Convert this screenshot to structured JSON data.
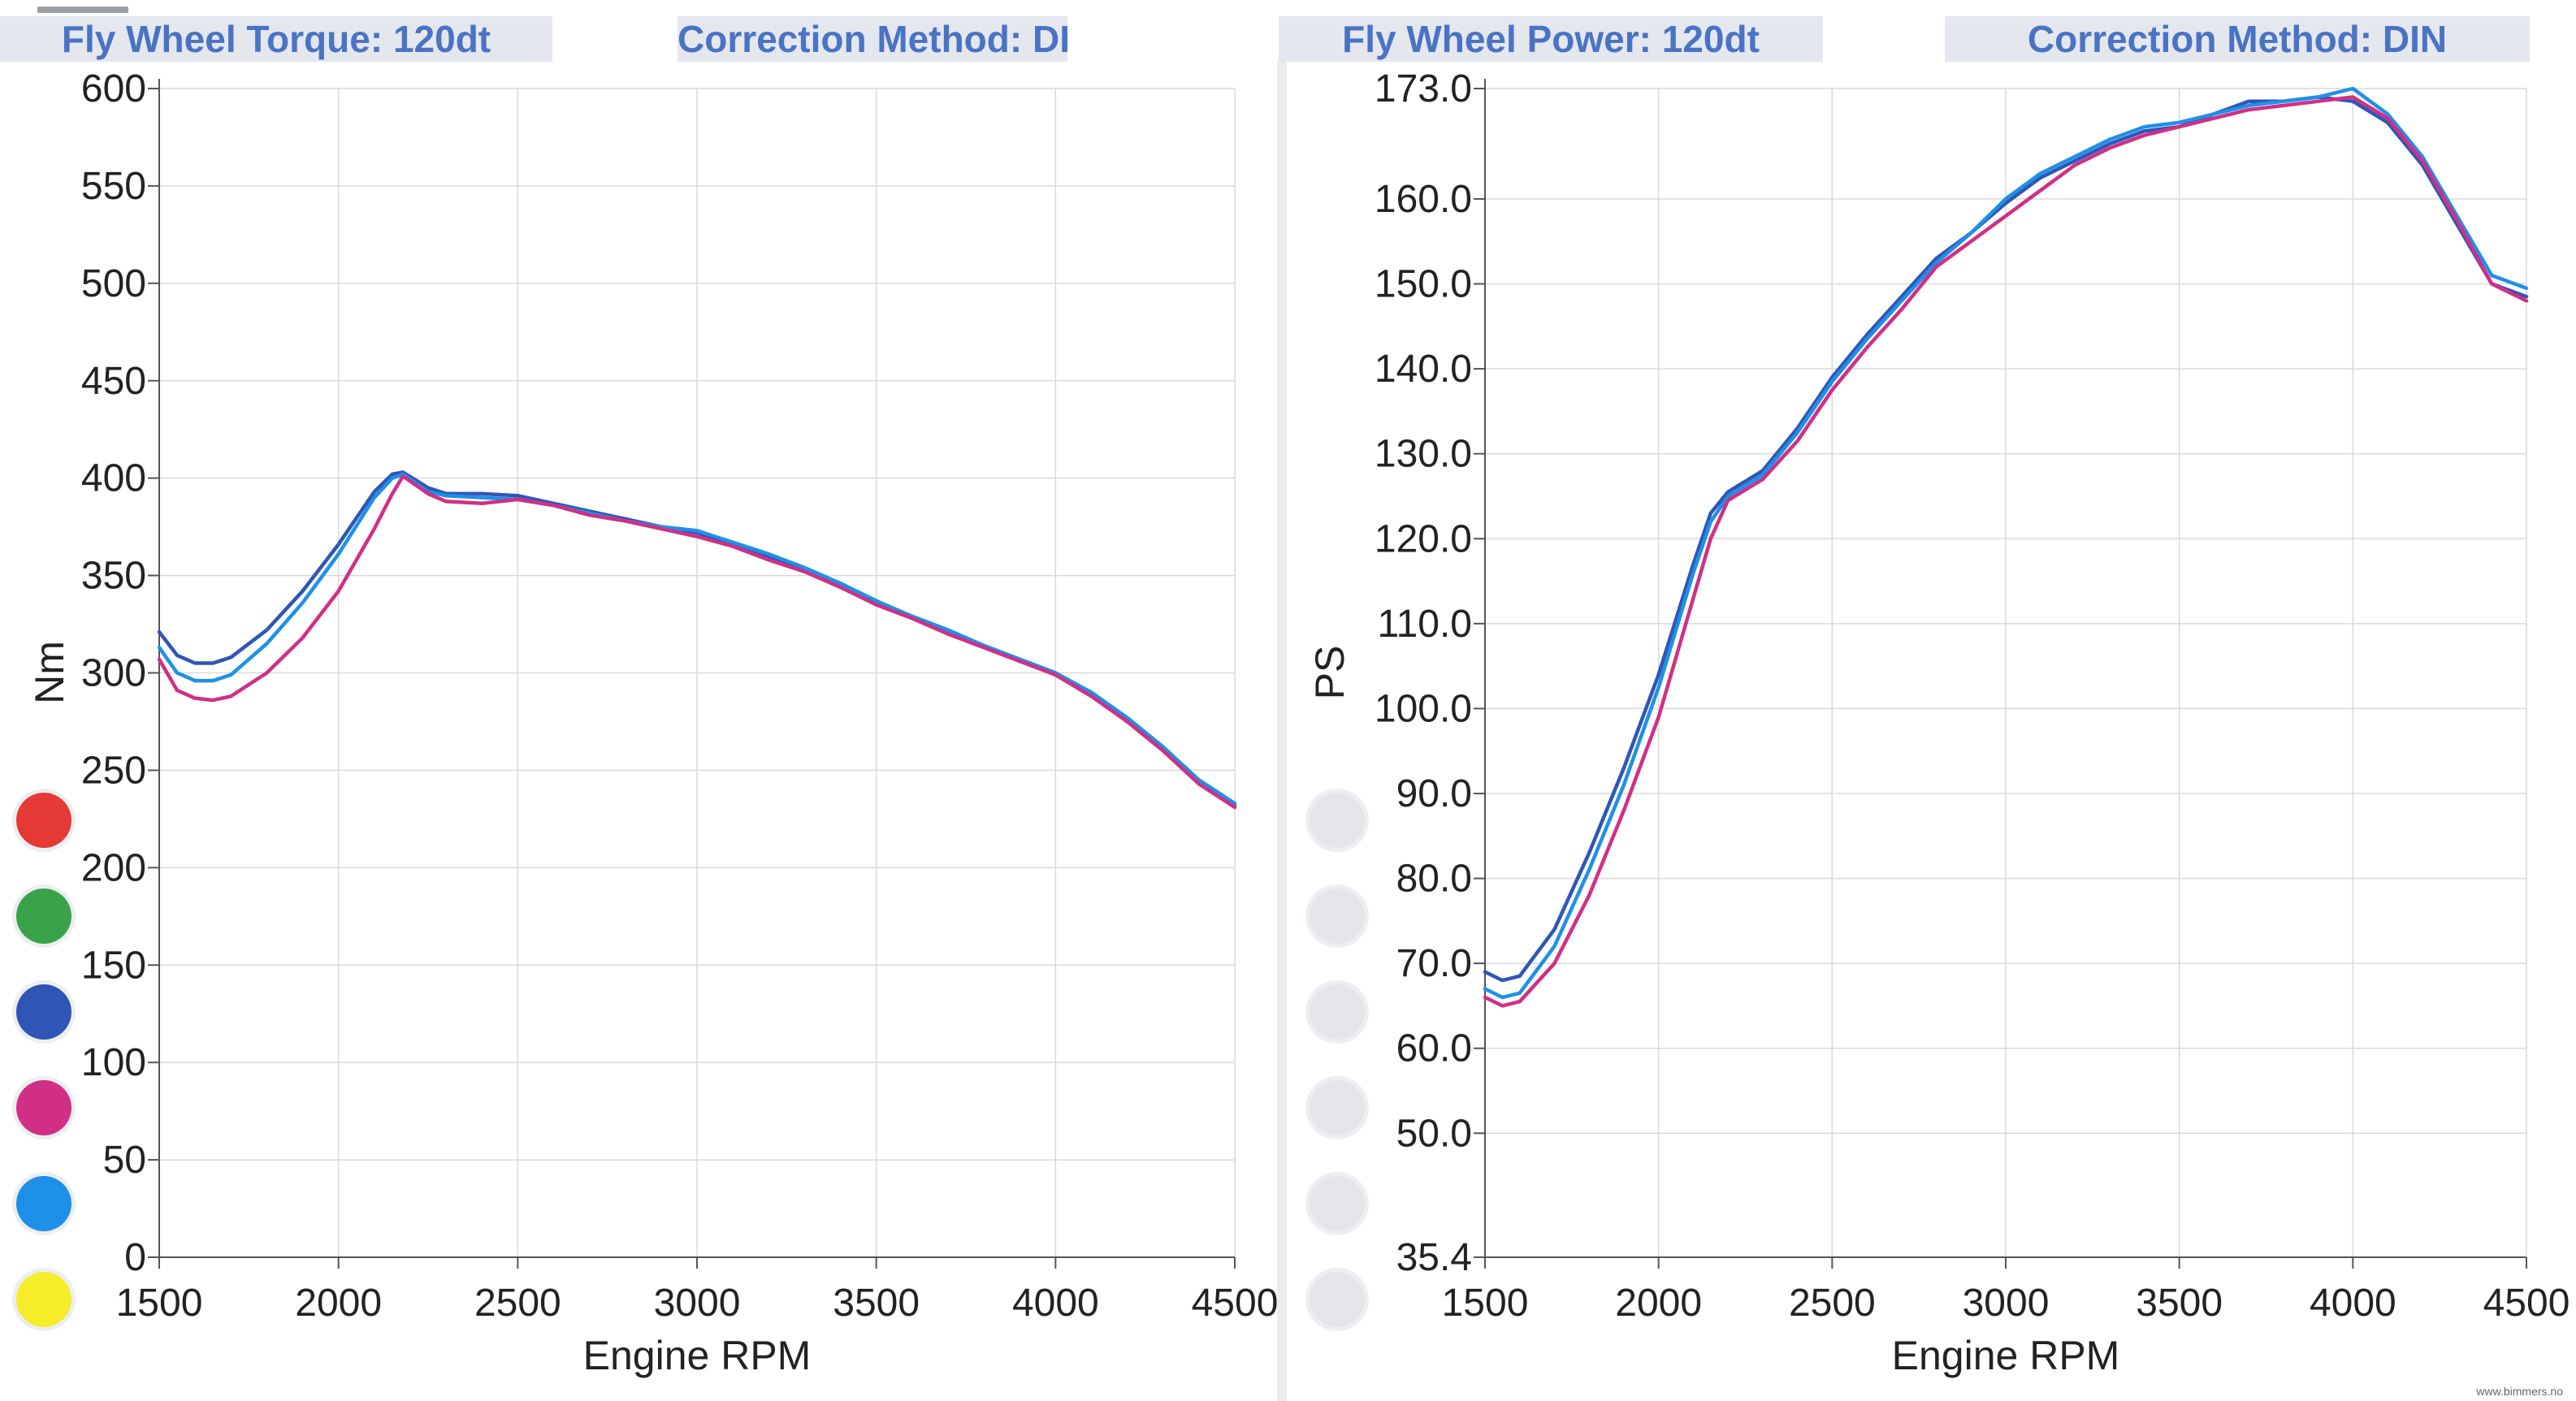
{
  "headers": [
    {
      "label": "Fly Wheel Torque: 120dt"
    },
    {
      "label": "Correction Method: DIN"
    },
    {
      "label": "Fly Wheel Power: 120dt"
    },
    {
      "label": "Correction Method: DIN"
    }
  ],
  "legend_swatches": [
    {
      "color": "#e53935"
    },
    {
      "color": "#3aa34a"
    },
    {
      "color": "#2f56b5"
    },
    {
      "color": "#d12f85"
    },
    {
      "color": "#1e90e8"
    },
    {
      "color": "#f6ec2a"
    }
  ],
  "inactive_swatch_color": "#e4e5e9",
  "watermark": "www.bimmers.no",
  "chart_data": [
    {
      "type": "line",
      "xlabel": "Engine RPM",
      "ylabel": "Nm",
      "xlim": [
        1500,
        4500
      ],
      "ylim": [
        0,
        600
      ],
      "x_ticks": [
        "1500",
        "2000",
        "2500",
        "3000",
        "3500",
        "4000",
        "4500"
      ],
      "y_ticks": [
        "0",
        "50",
        "100",
        "150",
        "200",
        "250",
        "300",
        "350",
        "400",
        "450",
        "500",
        "550",
        "600"
      ],
      "grid": true,
      "x": [
        1500,
        1550,
        1600,
        1650,
        1700,
        1800,
        1900,
        2000,
        2100,
        2150,
        2180,
        2250,
        2300,
        2400,
        2500,
        2600,
        2700,
        2800,
        2900,
        3000,
        3100,
        3200,
        3300,
        3400,
        3500,
        3600,
        3700,
        3800,
        3900,
        4000,
        4100,
        4200,
        4300,
        4400,
        4500
      ],
      "series": [
        {
          "color": "#2f56b5",
          "values": [
            321,
            309,
            305,
            305,
            308,
            322,
            342,
            366,
            393,
            402,
            403,
            395,
            392,
            392,
            391,
            387,
            383,
            379,
            375,
            372,
            366,
            360,
            353,
            345,
            336,
            329,
            322,
            314,
            307,
            300,
            289,
            276,
            261,
            244,
            232
          ]
        },
        {
          "color": "#1e90e8",
          "values": [
            313,
            300,
            296,
            296,
            299,
            315,
            336,
            361,
            390,
            400,
            402,
            393,
            391,
            390,
            389,
            386,
            382,
            378,
            375,
            373,
            367,
            361,
            354,
            346,
            337,
            329,
            322,
            314,
            307,
            300,
            290,
            277,
            262,
            245,
            233
          ]
        },
        {
          "color": "#d12f85",
          "values": [
            307,
            291,
            287,
            286,
            288,
            300,
            318,
            342,
            374,
            392,
            401,
            392,
            388,
            387,
            389,
            386,
            381,
            378,
            374,
            370,
            365,
            358,
            352,
            344,
            335,
            328,
            320,
            313,
            306,
            299,
            288,
            275,
            260,
            243,
            231
          ]
        }
      ]
    },
    {
      "type": "line",
      "xlabel": "Engine RPM",
      "ylabel": "PS",
      "xlim": [
        1500,
        4500
      ],
      "ylim": [
        35.4,
        173.0
      ],
      "x_ticks": [
        "1500",
        "2000",
        "2500",
        "3000",
        "3500",
        "4000",
        "4500"
      ],
      "y_ticks": [
        "35.4",
        "50.0",
        "60.0",
        "70.0",
        "80.0",
        "90.0",
        "100.0",
        "110.0",
        "120.0",
        "130.0",
        "140.0",
        "150.0",
        "160.0",
        "173.0"
      ],
      "grid": true,
      "x": [
        1500,
        1550,
        1600,
        1700,
        1800,
        1900,
        2000,
        2100,
        2150,
        2200,
        2300,
        2400,
        2500,
        2600,
        2700,
        2800,
        2900,
        3000,
        3100,
        3200,
        3300,
        3400,
        3500,
        3600,
        3700,
        3800,
        3900,
        4000,
        4100,
        4200,
        4300,
        4400,
        4500
      ],
      "series": [
        {
          "color": "#2f56b5",
          "values": [
            69,
            68,
            68.5,
            74,
            83,
            93,
            104,
            117,
            123,
            125.5,
            128,
            133,
            139,
            144,
            148.5,
            153,
            156,
            159.5,
            162.5,
            164.5,
            166.5,
            168,
            168.5,
            170,
            171.5,
            171.5,
            172,
            171.5,
            169,
            164,
            157,
            150,
            148.5
          ]
        },
        {
          "color": "#1e90e8",
          "values": [
            67,
            66,
            66.5,
            72,
            81,
            91,
            102.5,
            116,
            122,
            125,
            127.5,
            132.5,
            138.5,
            143.5,
            148,
            152.5,
            156,
            160,
            163,
            165,
            167,
            168.5,
            169,
            170,
            171,
            171.5,
            172,
            173,
            170,
            165,
            158,
            151,
            149.5
          ]
        },
        {
          "color": "#d12f85",
          "values": [
            66,
            65,
            65.5,
            70,
            78,
            88,
            99,
            113,
            120,
            124.5,
            127,
            131.5,
            137.5,
            142.5,
            147,
            152,
            155,
            158,
            161,
            164,
            166,
            167.5,
            168.5,
            169.5,
            170.5,
            171,
            171.5,
            172,
            169.5,
            164.5,
            157.5,
            150,
            148
          ]
        }
      ]
    }
  ]
}
